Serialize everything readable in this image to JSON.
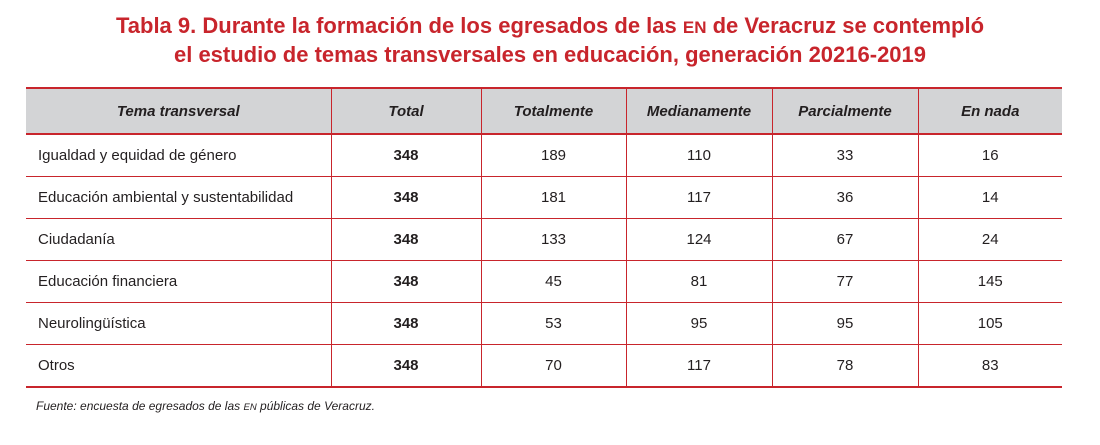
{
  "title": {
    "line1_pre": "Tabla 9. Durante la formación de los egresados de las ",
    "line1_abbr": "en",
    "line1_post": " de Veracruz se contempló",
    "line2": "el estudio de temas transversales en educación, generación 20216-2019"
  },
  "table": {
    "headers": [
      "Tema transversal",
      "Total",
      "Totalmente",
      "Medianamente",
      "Parcialmente",
      "En nada"
    ],
    "rows": [
      [
        "Igualdad y equidad de género",
        "348",
        "189",
        "110",
        "33",
        "16"
      ],
      [
        "Educación ambiental y sustentabilidad",
        "348",
        "181",
        "117",
        "36",
        "14"
      ],
      [
        "Ciudadanía",
        "348",
        "133",
        "124",
        "67",
        "24"
      ],
      [
        "Educación financiera",
        "348",
        "45",
        "81",
        "77",
        "145"
      ],
      [
        "Neurolingüística",
        "348",
        "53",
        "95",
        "95",
        "105"
      ],
      [
        "Otros",
        "348",
        "70",
        "117",
        "78",
        "83"
      ]
    ]
  },
  "source": {
    "pre": "Fuente: encuesta de egresados de las ",
    "abbr": "en",
    "post": " públicas de Veracruz."
  },
  "colors": {
    "accent": "#c8252c",
    "header_bg": "#d3d4d6",
    "text": "#231f20"
  }
}
